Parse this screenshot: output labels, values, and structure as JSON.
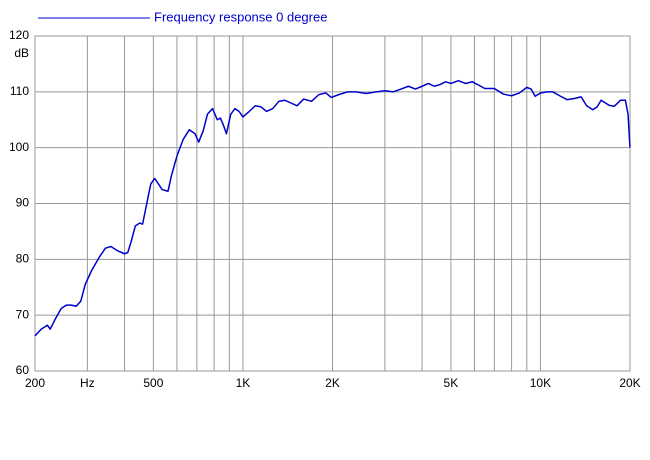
{
  "chart_data": {
    "type": "line",
    "xscale": "log",
    "ylabel": "dB",
    "x": [
      200,
      210,
      220,
      225,
      235,
      245,
      255,
      265,
      275,
      285,
      295,
      310,
      330,
      345,
      360,
      380,
      400,
      410,
      420,
      435,
      450,
      460,
      475,
      490,
      505,
      520,
      535,
      560,
      575,
      600,
      630,
      660,
      690,
      710,
      735,
      760,
      790,
      820,
      840,
      860,
      880,
      910,
      940,
      970,
      1000,
      1050,
      1100,
      1150,
      1200,
      1260,
      1320,
      1380,
      1450,
      1520,
      1600,
      1700,
      1800,
      1900,
      1980,
      2100,
      2250,
      2400,
      2600,
      2800,
      3000,
      3200,
      3400,
      3600,
      3800,
      4000,
      4200,
      4400,
      4600,
      4800,
      5000,
      5300,
      5600,
      5900,
      6200,
      6500,
      7000,
      7500,
      7800,
      8000,
      8500,
      9000,
      9300,
      9600,
      10000,
      10500,
      11000,
      11600,
      12300,
      13000,
      13700,
      14300,
      15000,
      15500,
      16000,
      17000,
      17700,
      18600,
      19300,
      19700,
      20000
    ],
    "series": [
      {
        "name": "Frequency response 0 degree",
        "color": "#0000cc",
        "values": [
          66.3,
          67.5,
          68.2,
          67.5,
          69.5,
          71.2,
          71.8,
          71.8,
          71.6,
          72.5,
          75.5,
          78,
          80.5,
          82,
          82.3,
          81.5,
          81,
          81.2,
          83,
          86,
          86.5,
          86.3,
          90,
          93.5,
          94.5,
          93.5,
          92.5,
          92.2,
          95,
          98.5,
          101.5,
          103.2,
          102.5,
          101,
          103,
          106,
          107,
          105,
          105.3,
          104,
          102.5,
          106,
          107,
          106.5,
          105.5,
          106.5,
          107.5,
          107.3,
          106.5,
          107,
          108.3,
          108.5,
          108,
          107.5,
          108.7,
          108.3,
          109.5,
          109.8,
          109,
          109.5,
          110,
          110,
          109.7,
          110,
          110.2,
          110,
          110.5,
          111,
          110.5,
          111,
          111.5,
          111,
          111.3,
          111.8,
          111.5,
          112,
          111.5,
          111.8,
          111.2,
          110.6,
          110.6,
          109.6,
          109.4,
          109.3,
          109.8,
          110.8,
          110.5,
          109.2,
          109.8,
          110,
          110,
          109.3,
          108.6,
          108.8,
          109.1,
          107.5,
          106.8,
          107.3,
          108.5,
          107.6,
          107.4,
          108.5,
          108.5,
          106,
          100
        ]
      }
    ],
    "xlim": [
      200,
      20000
    ],
    "xticks": [
      200,
      {
        "value": 300,
        "label": "Hz"
      },
      500,
      {
        "value": 1000,
        "label": "1K"
      },
      {
        "value": 2000,
        "label": "2K"
      },
      {
        "value": 5000,
        "label": "5K"
      },
      {
        "value": 10000,
        "label": "10K"
      },
      {
        "value": 20000,
        "label": "20K"
      }
    ],
    "xgrid_minor": [
      400,
      600,
      700,
      800,
      900,
      3000,
      4000,
      6000,
      7000,
      8000,
      9000
    ],
    "ylim": [
      60,
      120
    ],
    "yticks": [
      60,
      70,
      80,
      90,
      100,
      110,
      120
    ],
    "grid": true
  }
}
